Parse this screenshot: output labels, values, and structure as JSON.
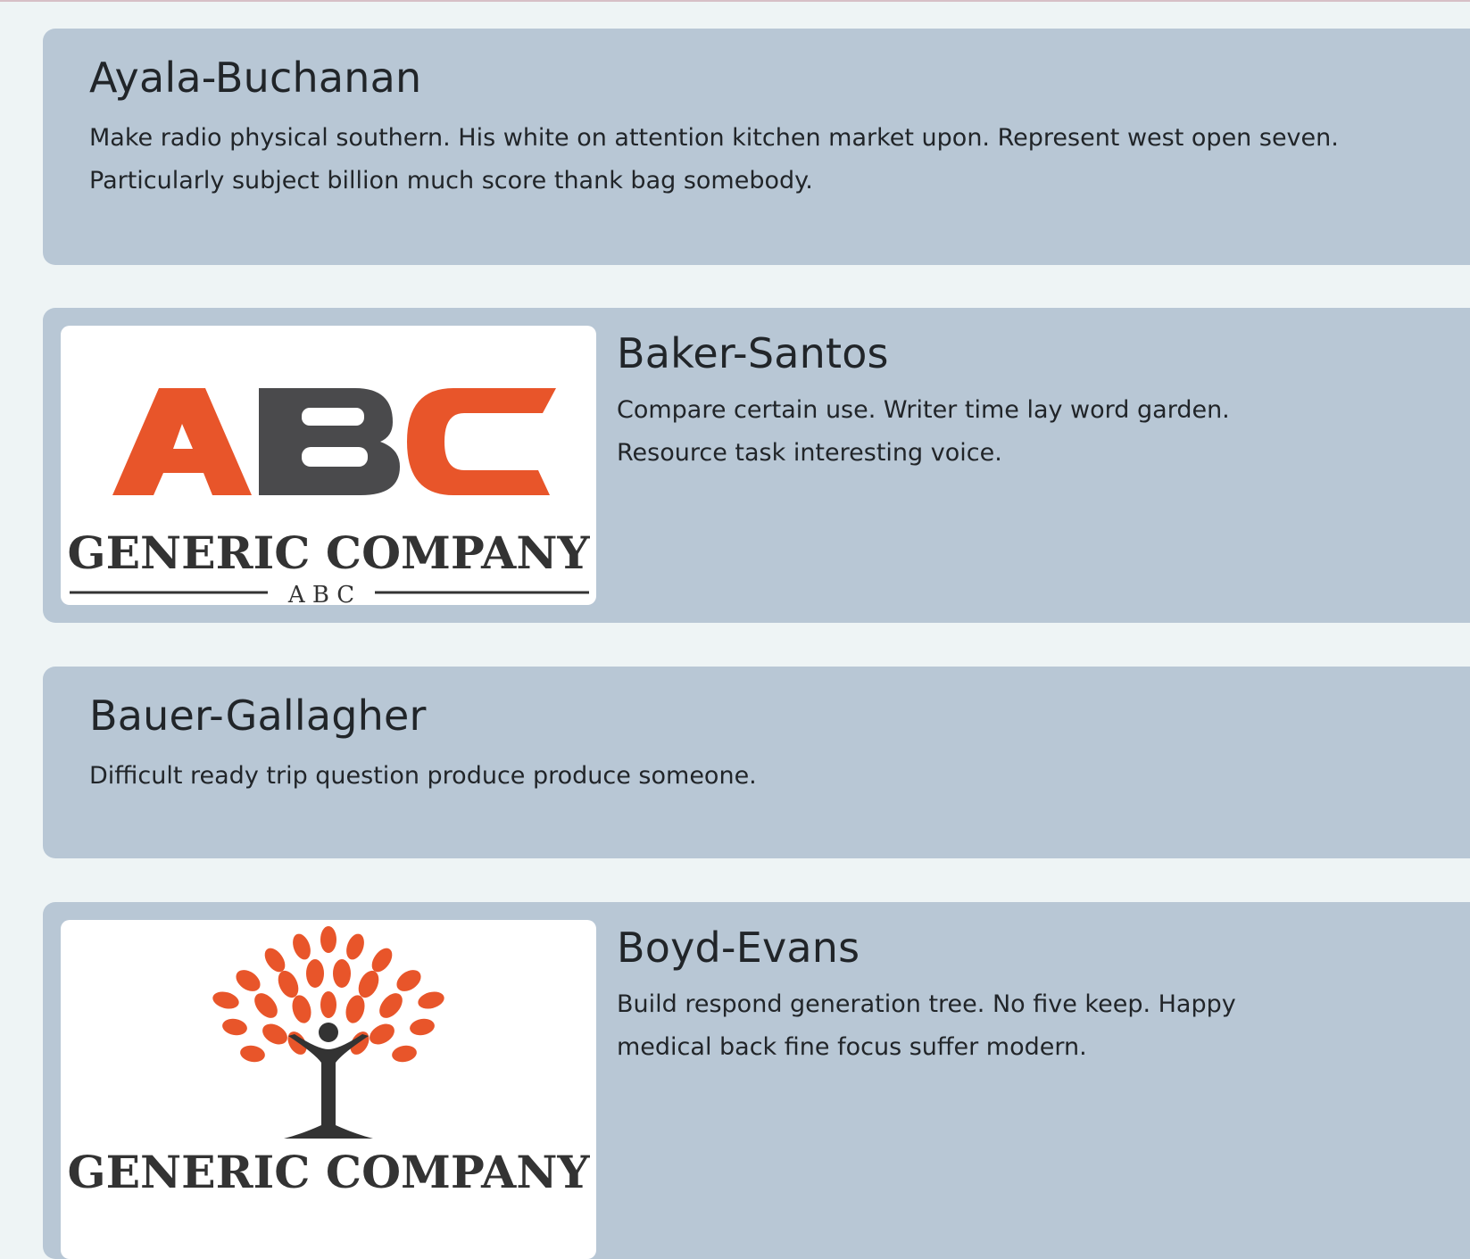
{
  "companies": [
    {
      "name": "Ayala-Buchanan",
      "description": "Make radio physical southern. His white on attention kitchen market upon. Represent west open seven. Particularly subject billion much score thank bag somebody."
    },
    {
      "name": "Baker-Santos",
      "description": "Compare certain use. Writer time lay word garden. Resource task interesting voice.",
      "logo": {
        "icon": "abc-letters-logo",
        "wordmark": "GENERIC COMPANY",
        "tagline": "A B C"
      }
    },
    {
      "name": "Bauer-Gallagher",
      "description": "Difficult ready trip question produce produce someone."
    },
    {
      "name": "Boyd-Evans",
      "description": "Build respond generation tree. No five keep. Happy medical back fine focus suffer modern.",
      "logo": {
        "icon": "tree-person-logo",
        "wordmark": "GENERIC COMPANY"
      }
    }
  ],
  "colors": {
    "card_background": "#b8c7d5",
    "page_background": "#eef4f5",
    "logo_orange": "#e8552a",
    "logo_gray": "#4a4a4c"
  }
}
